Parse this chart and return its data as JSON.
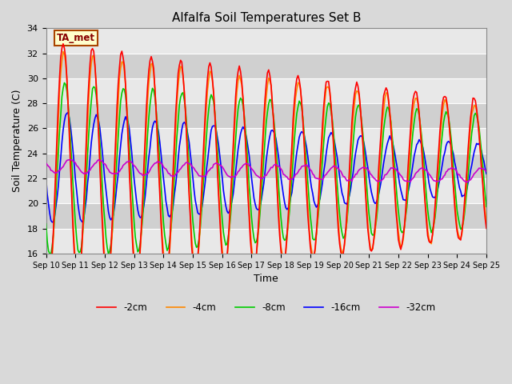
{
  "title": "Alfalfa Soil Temperatures Set B",
  "xlabel": "Time",
  "ylabel": "Soil Temperature (C)",
  "ylim": [
    16,
    34
  ],
  "yticks": [
    16,
    18,
    20,
    22,
    24,
    26,
    28,
    30,
    32,
    34
  ],
  "annotation_text": "TA_met",
  "annotation_bg": "#ffffcc",
  "annotation_border": "#aa4400",
  "annotation_text_color": "#880000",
  "colors": {
    "neg2cm": "#ff0000",
    "neg4cm": "#ff8800",
    "neg8cm": "#00cc00",
    "neg16cm": "#0000ff",
    "neg32cm": "#cc00cc"
  },
  "legend_labels": [
    "-2cm",
    "-4cm",
    "-8cm",
    "-16cm",
    "-32cm"
  ],
  "background_color": "#d9d9d9",
  "plot_bg_light": "#e8e8e8",
  "plot_bg_dark": "#d0d0d0",
  "grid_color": "#ffffff",
  "title_fontsize": 11,
  "figsize": [
    6.4,
    4.8
  ],
  "dpi": 100
}
